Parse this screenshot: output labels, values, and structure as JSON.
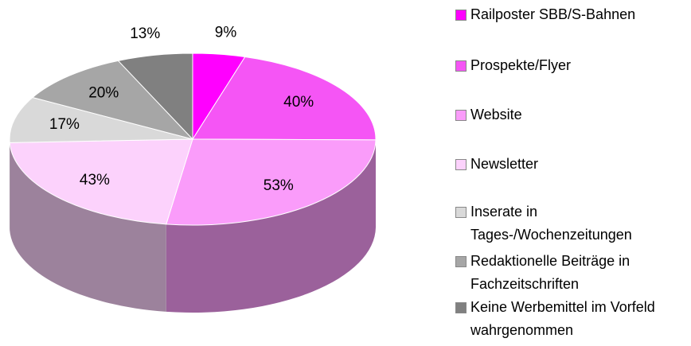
{
  "chart_data": {
    "type": "pie",
    "categories": [
      "Railposter SBB/S-Bahnen",
      "Prospekte/Flyer",
      "Website",
      "Newsletter",
      "Inserate in Tages-/Wochenzeitungen",
      "Redaktionelle Beiträge in Fachzeitschriften",
      "Keine Werbemittel im Vorfeld wahrgenommen"
    ],
    "values": [
      9,
      40,
      53,
      43,
      17,
      20,
      13
    ],
    "value_labels": [
      "9%",
      "40%",
      "53%",
      "43%",
      "17%",
      "20%",
      "13%"
    ],
    "colors": [
      "#ff00ff",
      "#f555f5",
      "#fa9cfa",
      "#fcd2fc",
      "#d9d9d9",
      "#a6a6a6",
      "#808080"
    ],
    "legend": "right"
  }
}
